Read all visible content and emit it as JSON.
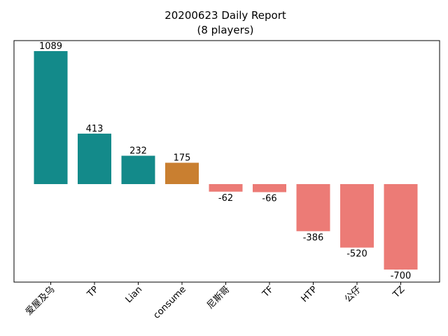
{
  "chart_data": {
    "type": "bar",
    "title": "20200623 Daily Report",
    "subtitle": "(8 players)",
    "xlabel": "",
    "ylabel": "",
    "categories": [
      "爱屋及乌",
      "TP",
      "Lian",
      "consume",
      "尼斯哥",
      "TF",
      "HTP",
      "公仔",
      "TZ"
    ],
    "values": [
      1089,
      413,
      232,
      175,
      -62,
      -66,
      -386,
      -520,
      -700
    ],
    "ylim": [
      -800,
      1200
    ],
    "grid": false,
    "y_ticks_visible": false,
    "colors": {
      "positive": "#138a8a",
      "highlight": "#c97f30",
      "negative": "#ec7b76"
    },
    "highlight_category": "consume"
  }
}
